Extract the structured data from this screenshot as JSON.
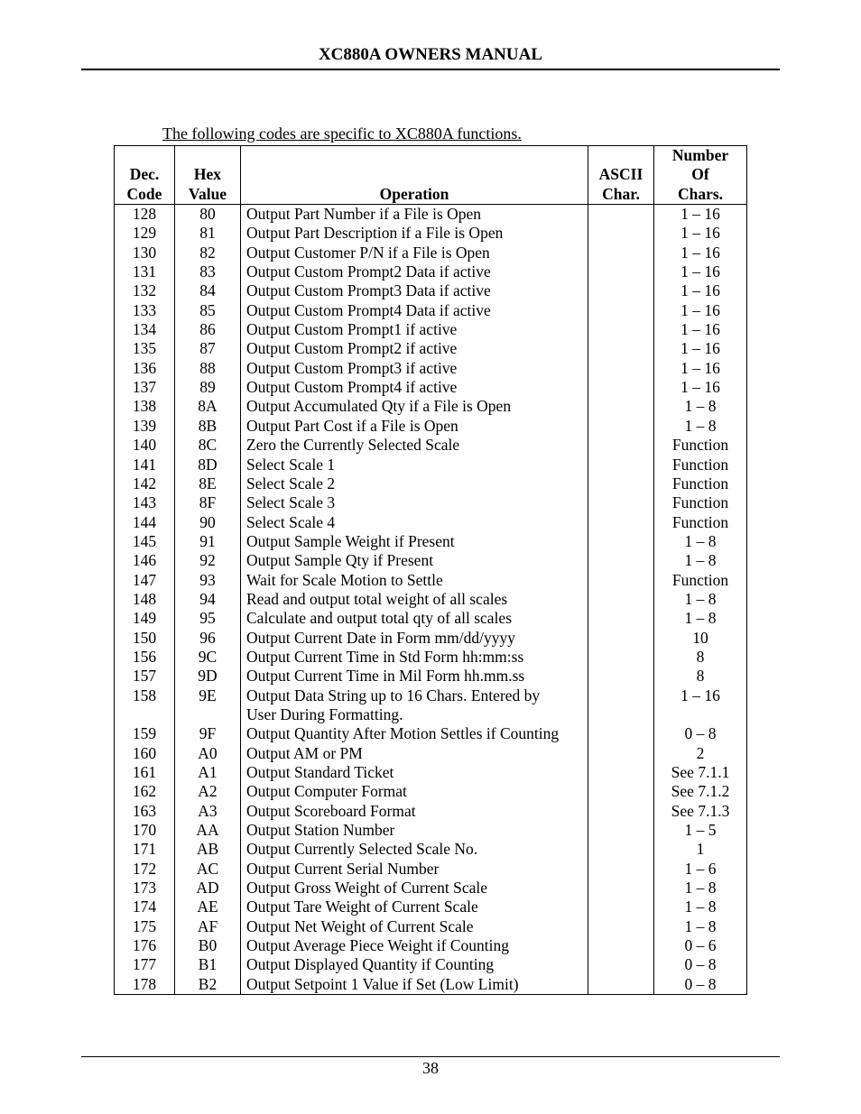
{
  "header": "XC880A OWNERS MANUAL",
  "intro": "The following codes are specific to XC880A functions.",
  "columns": {
    "dec1": "Dec.",
    "dec2": "Code",
    "hex1": "Hex",
    "hex2": "Value",
    "op": "Operation",
    "ascii1": "ASCII",
    "ascii2": "Char.",
    "num1": "Number",
    "num2": "Of",
    "num3": "Chars."
  },
  "rows": [
    {
      "dec": "128",
      "hex": "80",
      "op": "Output Part Number if a File is Open",
      "ascii": "",
      "num": "1 – 16"
    },
    {
      "dec": "129",
      "hex": "81",
      "op": "Output Part Description if a File is Open",
      "ascii": "",
      "num": "1 – 16"
    },
    {
      "dec": "130",
      "hex": "82",
      "op": "Output Customer P/N if a File is Open",
      "ascii": "",
      "num": "1 – 16"
    },
    {
      "dec": "131",
      "hex": "83",
      "op": "Output Custom Prompt2 Data if active",
      "ascii": "",
      "num": "1 – 16"
    },
    {
      "dec": "132",
      "hex": "84",
      "op": "Output Custom Prompt3 Data if active",
      "ascii": "",
      "num": "1 – 16"
    },
    {
      "dec": "133",
      "hex": "85",
      "op": "Output Custom Prompt4 Data if active",
      "ascii": "",
      "num": "1 – 16"
    },
    {
      "dec": "134",
      "hex": "86",
      "op": "Output Custom Prompt1 if active",
      "ascii": "",
      "num": "1 – 16"
    },
    {
      "dec": "135",
      "hex": "87",
      "op": "Output Custom Prompt2 if active",
      "ascii": "",
      "num": "1 – 16"
    },
    {
      "dec": "136",
      "hex": "88",
      "op": "Output Custom Prompt3 if active",
      "ascii": "",
      "num": "1 – 16"
    },
    {
      "dec": "137",
      "hex": "89",
      "op": "Output Custom Prompt4 if active",
      "ascii": "",
      "num": "1 – 16"
    },
    {
      "dec": "138",
      "hex": "8A",
      "op": "Output Accumulated Qty if a File is Open",
      "ascii": "",
      "num": "1 – 8"
    },
    {
      "dec": "139",
      "hex": "8B",
      "op": "Output Part Cost if a File is Open",
      "ascii": "",
      "num": "1 – 8"
    },
    {
      "dec": "140",
      "hex": "8C",
      "op": "Zero the Currently Selected Scale",
      "ascii": "",
      "num": "Function"
    },
    {
      "dec": "141",
      "hex": "8D",
      "op": "Select Scale 1",
      "ascii": "",
      "num": "Function"
    },
    {
      "dec": "142",
      "hex": "8E",
      "op": "Select Scale 2",
      "ascii": "",
      "num": "Function"
    },
    {
      "dec": "143",
      "hex": "8F",
      "op": "Select Scale 3",
      "ascii": "",
      "num": "Function"
    },
    {
      "dec": "144",
      "hex": "90",
      "op": "Select Scale 4",
      "ascii": "",
      "num": "Function"
    },
    {
      "dec": "145",
      "hex": "91",
      "op": "Output Sample Weight if Present",
      "ascii": "",
      "num": "1 – 8"
    },
    {
      "dec": "146",
      "hex": "92",
      "op": "Output Sample Qty if Present",
      "ascii": "",
      "num": "1 – 8"
    },
    {
      "dec": "147",
      "hex": "93",
      "op": "Wait for Scale Motion to Settle",
      "ascii": "",
      "num": "Function"
    },
    {
      "dec": "148",
      "hex": "94",
      "op": "Read and output total weight of all scales",
      "ascii": "",
      "num": "1 – 8"
    },
    {
      "dec": "149",
      "hex": "95",
      "op": "Calculate and output total qty of all scales",
      "ascii": "",
      "num": "1 – 8"
    },
    {
      "dec": "150",
      "hex": "96",
      "op": "Output Current Date in Form mm/dd/yyyy",
      "ascii": "",
      "num": "10"
    },
    {
      "dec": "156",
      "hex": "9C",
      "op": "Output Current Time in Std Form hh:mm:ss",
      "ascii": "",
      "num": "8"
    },
    {
      "dec": "157",
      "hex": "9D",
      "op": "Output Current Time in Mil Form hh.mm.ss",
      "ascii": "",
      "num": "8"
    },
    {
      "dec": "158",
      "hex": "9E",
      "op": "Output Data String up to 16 Chars. Entered by",
      "ascii": "",
      "num": "1 – 16"
    },
    {
      "dec": "",
      "hex": "",
      "op": "User During Formatting.",
      "ascii": "",
      "num": "",
      "indent": true
    },
    {
      "dec": "159",
      "hex": "9F",
      "op": "Output Quantity After Motion Settles if Counting",
      "ascii": "",
      "num": "0 – 8"
    },
    {
      "dec": "160",
      "hex": "A0",
      "op": "Output AM or PM",
      "ascii": "",
      "num": "2"
    },
    {
      "dec": "161",
      "hex": "A1",
      "op": "Output Standard Ticket",
      "ascii": "",
      "num": "See 7.1.1"
    },
    {
      "dec": "162",
      "hex": "A2",
      "op": "Output Computer Format",
      "ascii": "",
      "num": "See 7.1.2"
    },
    {
      "dec": "163",
      "hex": "A3",
      "op": "Output Scoreboard Format",
      "ascii": "",
      "num": "See 7.1.3"
    },
    {
      "dec": "170",
      "hex": "AA",
      "op": "Output Station Number",
      "ascii": "",
      "num": "1 – 5"
    },
    {
      "dec": "171",
      "hex": "AB",
      "op": "Output Currently Selected Scale No.",
      "ascii": "",
      "num": "1"
    },
    {
      "dec": "172",
      "hex": "AC",
      "op": "Output Current Serial Number",
      "ascii": "",
      "num": "1 – 6"
    },
    {
      "dec": "173",
      "hex": "AD",
      "op": "Output Gross Weight of Current Scale",
      "ascii": "",
      "num": "1 – 8"
    },
    {
      "dec": "174",
      "hex": "AE",
      "op": "Output Tare Weight of Current Scale",
      "ascii": "",
      "num": "1 – 8"
    },
    {
      "dec": "175",
      "hex": "AF",
      "op": "Output Net Weight of Current Scale",
      "ascii": "",
      "num": "1 – 8"
    },
    {
      "dec": "176",
      "hex": "B0",
      "op": "Output Average Piece Weight if Counting",
      "ascii": "",
      "num": "0 – 6"
    },
    {
      "dec": "177",
      "hex": "B1",
      "op": "Output Displayed Quantity if Counting",
      "ascii": "",
      "num": "0 – 8"
    },
    {
      "dec": "178",
      "hex": "B2",
      "op": "Output Setpoint 1 Value if Set (Low Limit)",
      "ascii": "",
      "num": "0 – 8"
    }
  ],
  "page_number": "38"
}
